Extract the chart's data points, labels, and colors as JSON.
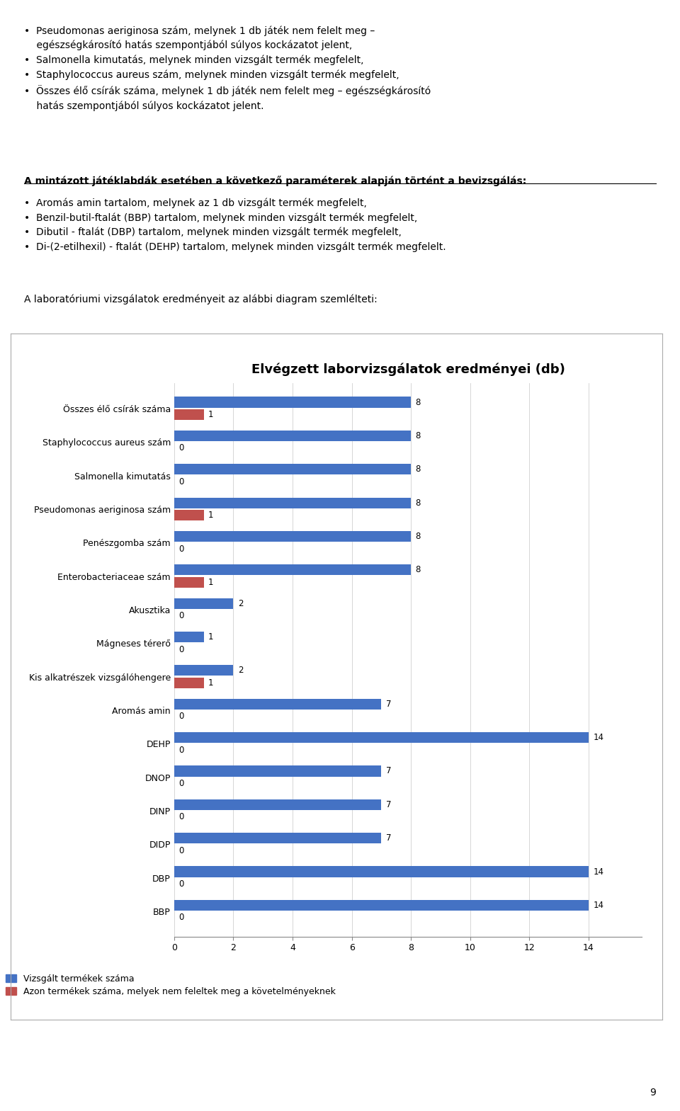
{
  "title": "Elvégzett laborvizsgálatok eredményei (db)",
  "categories": [
    "Összes élő csírák száma",
    "Staphylococcus aureus szám",
    "Salmonella kimutatás",
    "Pseudomonas aeriginosa szám",
    "Penészgomba szám",
    "Enterobacteriaceae szám",
    "Akusztika",
    "Mágneses térerő",
    "Kis alkatrészek vizsgálóhengere",
    "Aromás amin",
    "DEHP",
    "DNOP",
    "DINP",
    "DIDP",
    "DBP",
    "BBP"
  ],
  "blue_values": [
    8,
    8,
    8,
    8,
    8,
    8,
    2,
    1,
    2,
    7,
    14,
    7,
    7,
    7,
    14,
    14
  ],
  "red_values": [
    1,
    0,
    0,
    1,
    0,
    1,
    0,
    0,
    1,
    0,
    0,
    0,
    0,
    0,
    0,
    0
  ],
  "blue_color": "#4472C4",
  "red_color": "#C0504D",
  "xticks": [
    0,
    2,
    4,
    6,
    8,
    10,
    12,
    14
  ],
  "legend_blue": "Vizsgált termékek száma",
  "legend_red": "Azon termékek száma, melyek nem feleltek meg a követelményeknek",
  "para1_line1a": "Pseudomonas aeriginosa szám, melynek ",
  "para1_line1b": "1 db",
  "para1_line1c": " játék nem felelt meg –",
  "para1_line1d": "egészségkárosító hatás szempontjából ",
  "para1_line1e": "súlyos kockázat",
  "para1_line1f": "ot jelent,",
  "para1_line2": "Salmonella kimutatás, melynek minden vizsgált termék megfelelt,",
  "para1_line3": "Staphylococcus aureus szám, melynek minden vizsgált termék megfelelt,",
  "para1_line4a": "Összes élő csírák száma, melynek ",
  "para1_line4b": "1 db",
  "para1_line4c": " játék nem felelt meg – egészségkárosító",
  "para1_line4d": "hatás szempontjából ",
  "para1_line4e": "súlyos kockázat",
  "para1_line4f": "ot jelent.",
  "para2_title": "A mintázott játéklabdák esetében a következő paraméterek alapján történt a bevizsgálás:",
  "para2_items": [
    "Aromás amin tartalom, melynek az 1 db vizsgált termék megfelelt,",
    "Benzil-butil-ftalát (BBP) tartalom, melynek minden vizsgált termék megfelelt,",
    "Dibutil - ftalát (DBP) tartalom, melynek minden vizsgált termék megfelelt,",
    "Di-(2-etilhexil) - ftalát (DEHP) tartalom, melynek minden vizsgált termék megfelelt."
  ],
  "para3": "A laboratóriumi vizsgálatok eredményeit az alábbi diagram szemlélteti:",
  "page_number": "9",
  "background_color": "#ffffff",
  "text_fontsize": 10.5,
  "chart_title_fontsize": 13
}
